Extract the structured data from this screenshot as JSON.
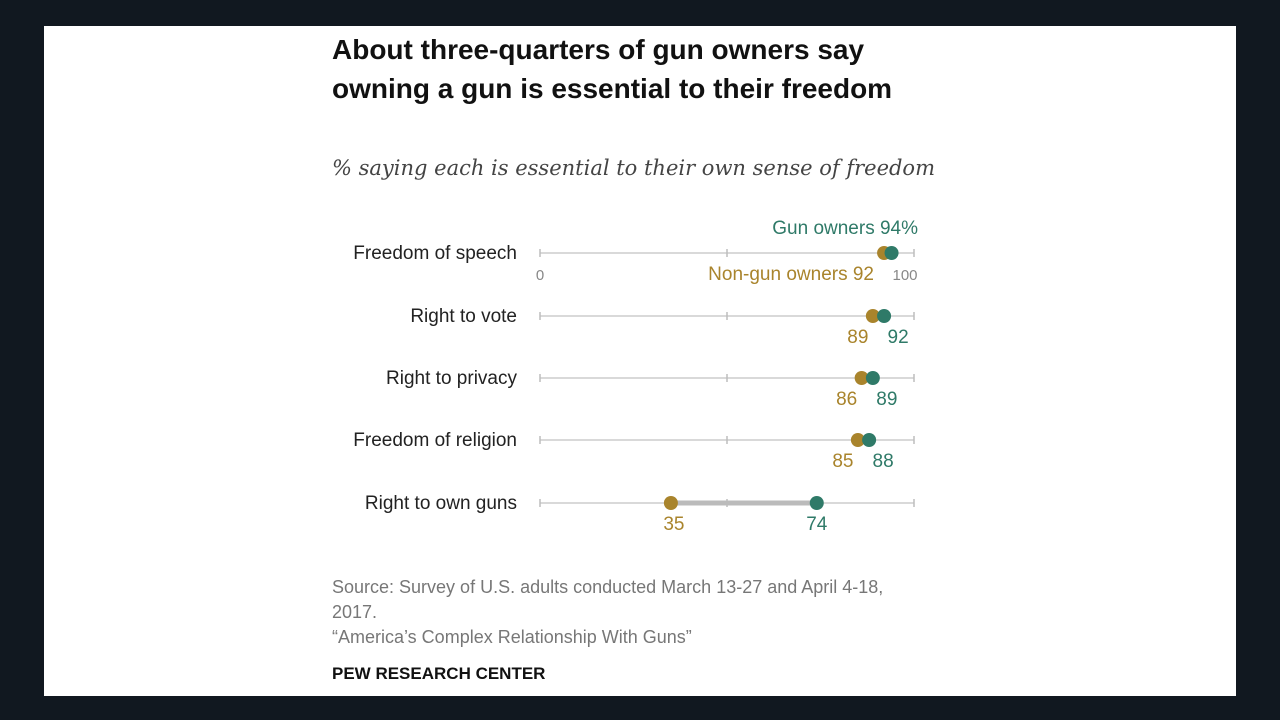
{
  "chart_data": {
    "type": "dot",
    "title": "About three-quarters of gun owners say owning a gun is essential to their freedom",
    "subtitle": "% saying each is essential to their own sense of freedom",
    "categories": [
      "Freedom of speech",
      "Right to vote",
      "Right to privacy",
      "Freedom of religion",
      "Right to own guns"
    ],
    "series": [
      {
        "name": "Non-gun owners",
        "values": [
          92,
          89,
          86,
          85,
          35
        ],
        "color": "#a9842c"
      },
      {
        "name": "Gun owners",
        "values": [
          94,
          92,
          89,
          88,
          74
        ],
        "color": "#2f7a68"
      }
    ],
    "first_row_labels": {
      "gun_owners": "Gun owners 94%",
      "non_gun_owners": "Non-gun owners 92"
    },
    "axis": {
      "min": 0,
      "max": 100,
      "tick_labels": [
        "0",
        "100"
      ]
    },
    "xlim": [
      0,
      100
    ]
  },
  "source": {
    "line1": "Source: Survey of U.S. adults conducted March 13-27 and April 4-18, 2017.",
    "line2": "“America’s Complex Relationship With Guns”"
  },
  "brand": "PEW RESEARCH CENTER",
  "colors": {
    "background": "#111820",
    "panel": "#ffffff",
    "non_gun": "#a9842c",
    "gun": "#2f7a68",
    "axis": "#d9d9d9"
  }
}
